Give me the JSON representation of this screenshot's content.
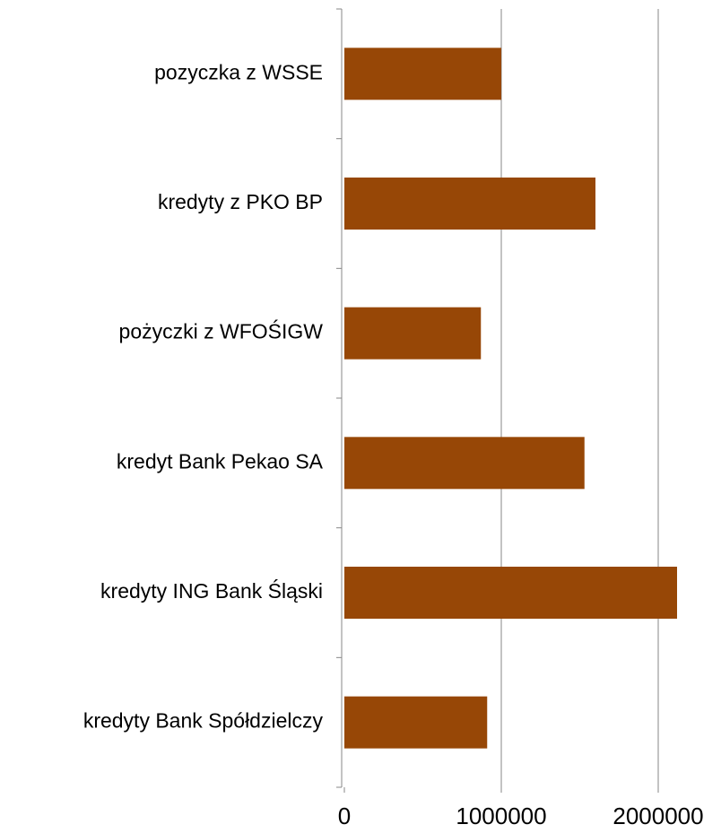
{
  "chart_data": {
    "type": "bar",
    "orientation": "horizontal",
    "categories": [
      "pozyczka z WSSE",
      "kredyty z PKO BP",
      "pożyczki z WFOŚIGW",
      "kredyt Bank Pekao SA",
      "kredyty ING Bank Śląski",
      "kredyty Bank Spółdzielczy"
    ],
    "values": [
      1000000,
      1600000,
      870000,
      1530000,
      2120000,
      910000
    ],
    "color": "#974706",
    "xlim": [
      0,
      2400000
    ],
    "xticks": [
      0,
      1000000,
      2000000
    ],
    "grid": true
  }
}
